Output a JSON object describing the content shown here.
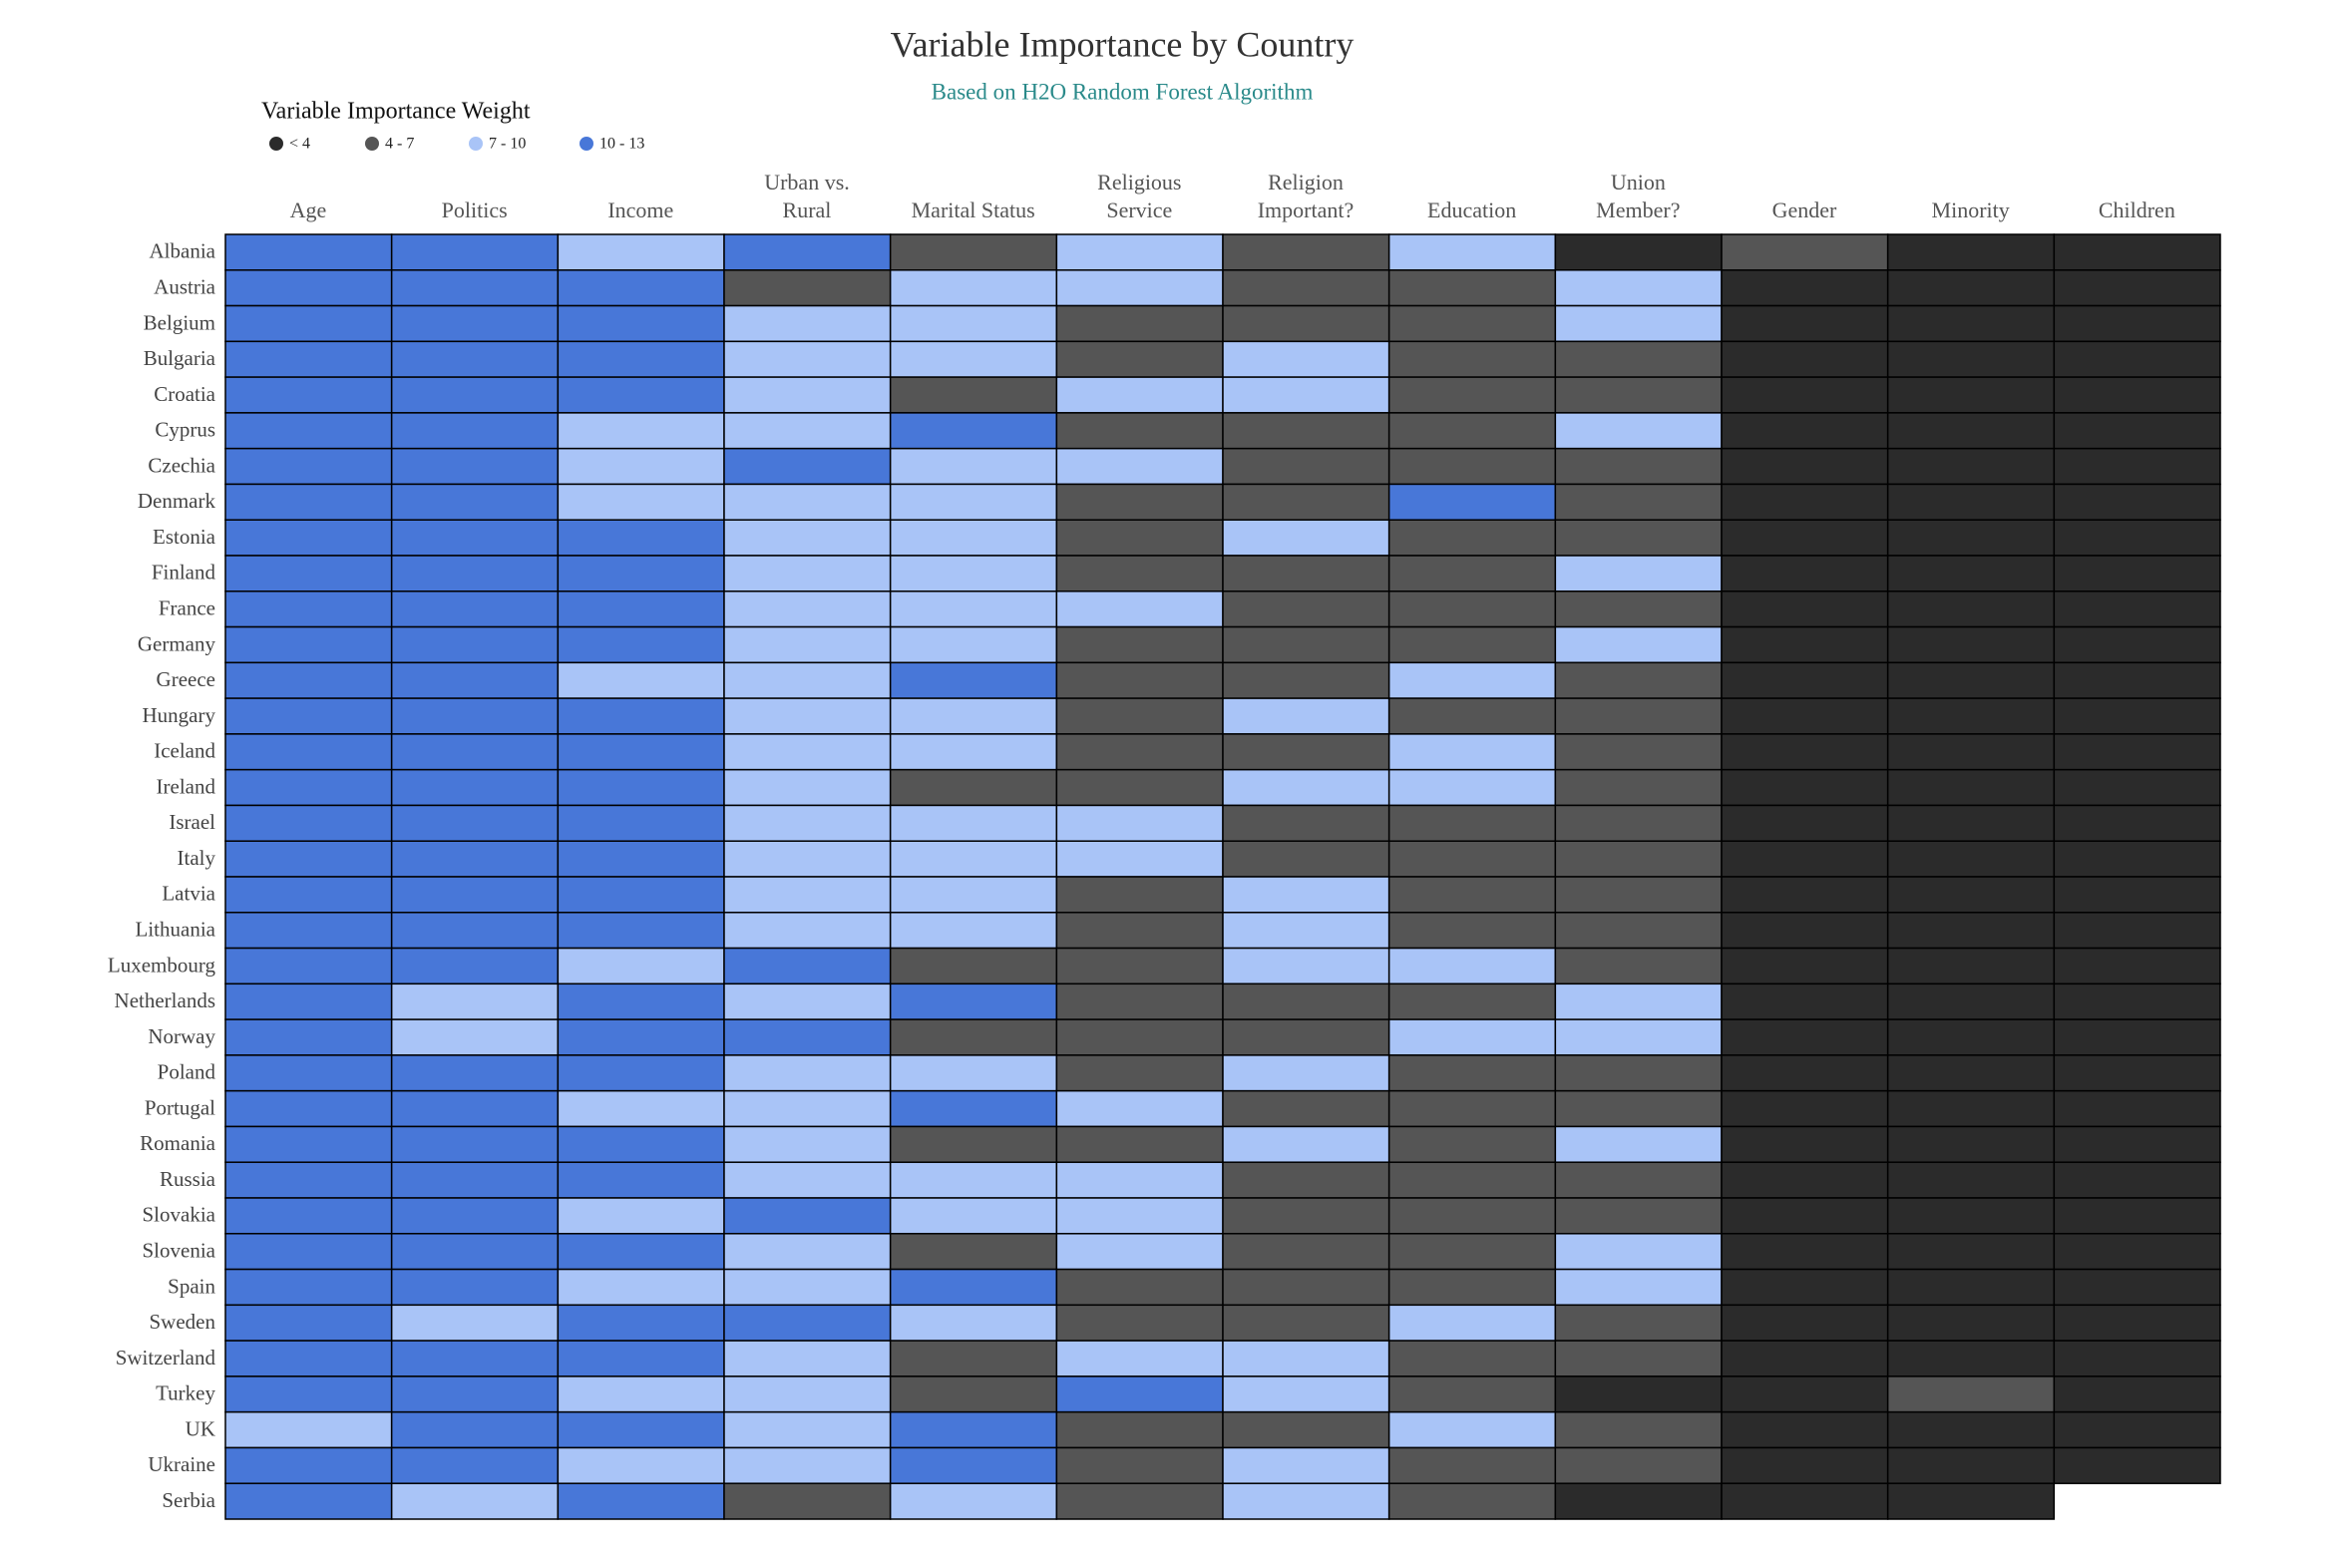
{
  "chart_data": {
    "type": "heatmap",
    "title": "Variable Importance by Country",
    "subtitle": "Based on H2O Random Forest Algorithm",
    "legend_title": "Variable Importance Weight",
    "legend": [
      {
        "label": "< 4",
        "color": "#2b2b2b"
      },
      {
        "label": "4 - 7",
        "color": "#555555"
      },
      {
        "label": "7 - 10",
        "color": "#a9c4f7"
      },
      {
        "label": "10 - 13",
        "color": "#4877d8"
      }
    ],
    "columns": [
      "Age",
      "Politics",
      "Income",
      "Urban vs.\nRural",
      "Marital Status",
      "Religious\nService",
      "Religion\nImportant?",
      "Education",
      "Union\nMember?",
      "Gender",
      "Minority",
      "Children"
    ],
    "rows": [
      {
        "name": "Albania",
        "cells": [
          "10 - 13",
          "10 - 13",
          "7 - 10",
          "10 - 13",
          "4 - 7",
          "7 - 10",
          "4 - 7",
          "7 - 10",
          "< 4",
          "4 - 7",
          "< 4",
          "< 4"
        ]
      },
      {
        "name": "Austria",
        "cells": [
          "10 - 13",
          "10 - 13",
          "10 - 13",
          "4 - 7",
          "7 - 10",
          "7 - 10",
          "4 - 7",
          "4 - 7",
          "7 - 10",
          "< 4",
          "< 4",
          "< 4"
        ]
      },
      {
        "name": "Belgium",
        "cells": [
          "10 - 13",
          "10 - 13",
          "10 - 13",
          "7 - 10",
          "7 - 10",
          "4 - 7",
          "4 - 7",
          "4 - 7",
          "7 - 10",
          "< 4",
          "< 4",
          "< 4"
        ]
      },
      {
        "name": "Bulgaria",
        "cells": [
          "10 - 13",
          "10 - 13",
          "10 - 13",
          "7 - 10",
          "7 - 10",
          "4 - 7",
          "7 - 10",
          "4 - 7",
          "4 - 7",
          "< 4",
          "< 4",
          "< 4"
        ]
      },
      {
        "name": "Croatia",
        "cells": [
          "10 - 13",
          "10 - 13",
          "10 - 13",
          "7 - 10",
          "4 - 7",
          "7 - 10",
          "7 - 10",
          "4 - 7",
          "4 - 7",
          "< 4",
          "< 4",
          "< 4"
        ]
      },
      {
        "name": "Cyprus",
        "cells": [
          "10 - 13",
          "10 - 13",
          "7 - 10",
          "7 - 10",
          "10 - 13",
          "4 - 7",
          "4 - 7",
          "4 - 7",
          "7 - 10",
          "< 4",
          "< 4",
          "< 4"
        ]
      },
      {
        "name": "Czechia",
        "cells": [
          "10 - 13",
          "10 - 13",
          "7 - 10",
          "10 - 13",
          "7 - 10",
          "7 - 10",
          "4 - 7",
          "4 - 7",
          "4 - 7",
          "< 4",
          "< 4",
          "< 4"
        ]
      },
      {
        "name": "Denmark",
        "cells": [
          "10 - 13",
          "10 - 13",
          "7 - 10",
          "7 - 10",
          "7 - 10",
          "4 - 7",
          "4 - 7",
          "10 - 13",
          "4 - 7",
          "< 4",
          "< 4",
          "< 4"
        ]
      },
      {
        "name": "Estonia",
        "cells": [
          "10 - 13",
          "10 - 13",
          "10 - 13",
          "7 - 10",
          "7 - 10",
          "4 - 7",
          "7 - 10",
          "4 - 7",
          "4 - 7",
          "< 4",
          "< 4",
          "< 4"
        ]
      },
      {
        "name": "Finland",
        "cells": [
          "10 - 13",
          "10 - 13",
          "10 - 13",
          "7 - 10",
          "7 - 10",
          "4 - 7",
          "4 - 7",
          "4 - 7",
          "7 - 10",
          "< 4",
          "< 4",
          "< 4"
        ]
      },
      {
        "name": "France",
        "cells": [
          "10 - 13",
          "10 - 13",
          "10 - 13",
          "7 - 10",
          "7 - 10",
          "7 - 10",
          "4 - 7",
          "4 - 7",
          "4 - 7",
          "< 4",
          "< 4",
          "< 4"
        ]
      },
      {
        "name": "Germany",
        "cells": [
          "10 - 13",
          "10 - 13",
          "10 - 13",
          "7 - 10",
          "7 - 10",
          "4 - 7",
          "4 - 7",
          "4 - 7",
          "7 - 10",
          "< 4",
          "< 4",
          "< 4"
        ]
      },
      {
        "name": "Greece",
        "cells": [
          "10 - 13",
          "10 - 13",
          "7 - 10",
          "7 - 10",
          "10 - 13",
          "4 - 7",
          "4 - 7",
          "7 - 10",
          "4 - 7",
          "< 4",
          "< 4",
          "< 4"
        ]
      },
      {
        "name": "Hungary",
        "cells": [
          "10 - 13",
          "10 - 13",
          "10 - 13",
          "7 - 10",
          "7 - 10",
          "4 - 7",
          "7 - 10",
          "4 - 7",
          "4 - 7",
          "< 4",
          "< 4",
          "< 4"
        ]
      },
      {
        "name": "Iceland",
        "cells": [
          "10 - 13",
          "10 - 13",
          "10 - 13",
          "7 - 10",
          "7 - 10",
          "4 - 7",
          "4 - 7",
          "7 - 10",
          "4 - 7",
          "< 4",
          "< 4",
          "< 4"
        ]
      },
      {
        "name": "Ireland",
        "cells": [
          "10 - 13",
          "10 - 13",
          "10 - 13",
          "7 - 10",
          "4 - 7",
          "4 - 7",
          "7 - 10",
          "7 - 10",
          "4 - 7",
          "< 4",
          "< 4",
          "< 4"
        ]
      },
      {
        "name": "Israel",
        "cells": [
          "10 - 13",
          "10 - 13",
          "10 - 13",
          "7 - 10",
          "7 - 10",
          "7 - 10",
          "4 - 7",
          "4 - 7",
          "4 - 7",
          "< 4",
          "< 4",
          "< 4"
        ]
      },
      {
        "name": "Italy",
        "cells": [
          "10 - 13",
          "10 - 13",
          "10 - 13",
          "7 - 10",
          "7 - 10",
          "7 - 10",
          "4 - 7",
          "4 - 7",
          "4 - 7",
          "< 4",
          "< 4",
          "< 4"
        ]
      },
      {
        "name": "Latvia",
        "cells": [
          "10 - 13",
          "10 - 13",
          "10 - 13",
          "7 - 10",
          "7 - 10",
          "4 - 7",
          "7 - 10",
          "4 - 7",
          "4 - 7",
          "< 4",
          "< 4",
          "< 4"
        ]
      },
      {
        "name": "Lithuania",
        "cells": [
          "10 - 13",
          "10 - 13",
          "10 - 13",
          "7 - 10",
          "7 - 10",
          "4 - 7",
          "7 - 10",
          "4 - 7",
          "4 - 7",
          "< 4",
          "< 4",
          "< 4"
        ]
      },
      {
        "name": "Luxembourg",
        "cells": [
          "10 - 13",
          "10 - 13",
          "7 - 10",
          "10 - 13",
          "4 - 7",
          "4 - 7",
          "7 - 10",
          "7 - 10",
          "4 - 7",
          "< 4",
          "< 4",
          "< 4"
        ]
      },
      {
        "name": "Netherlands",
        "cells": [
          "10 - 13",
          "7 - 10",
          "10 - 13",
          "7 - 10",
          "10 - 13",
          "4 - 7",
          "4 - 7",
          "4 - 7",
          "7 - 10",
          "< 4",
          "< 4",
          "< 4"
        ]
      },
      {
        "name": "Norway",
        "cells": [
          "10 - 13",
          "7 - 10",
          "10 - 13",
          "10 - 13",
          "4 - 7",
          "4 - 7",
          "4 - 7",
          "7 - 10",
          "7 - 10",
          "< 4",
          "< 4",
          "< 4"
        ]
      },
      {
        "name": "Poland",
        "cells": [
          "10 - 13",
          "10 - 13",
          "10 - 13",
          "7 - 10",
          "7 - 10",
          "4 - 7",
          "7 - 10",
          "4 - 7",
          "4 - 7",
          "< 4",
          "< 4",
          "< 4"
        ]
      },
      {
        "name": "Portugal",
        "cells": [
          "10 - 13",
          "10 - 13",
          "7 - 10",
          "7 - 10",
          "10 - 13",
          "7 - 10",
          "4 - 7",
          "4 - 7",
          "4 - 7",
          "< 4",
          "< 4",
          "< 4"
        ]
      },
      {
        "name": "Romania",
        "cells": [
          "10 - 13",
          "10 - 13",
          "10 - 13",
          "7 - 10",
          "4 - 7",
          "4 - 7",
          "7 - 10",
          "4 - 7",
          "7 - 10",
          "< 4",
          "< 4",
          "< 4"
        ]
      },
      {
        "name": "Russia",
        "cells": [
          "10 - 13",
          "10 - 13",
          "10 - 13",
          "7 - 10",
          "7 - 10",
          "7 - 10",
          "4 - 7",
          "4 - 7",
          "4 - 7",
          "< 4",
          "< 4",
          "< 4"
        ]
      },
      {
        "name": "Slovakia",
        "cells": [
          "10 - 13",
          "10 - 13",
          "7 - 10",
          "10 - 13",
          "7 - 10",
          "7 - 10",
          "4 - 7",
          "4 - 7",
          "4 - 7",
          "< 4",
          "< 4",
          "< 4"
        ]
      },
      {
        "name": "Slovenia",
        "cells": [
          "10 - 13",
          "10 - 13",
          "10 - 13",
          "7 - 10",
          "4 - 7",
          "7 - 10",
          "4 - 7",
          "4 - 7",
          "7 - 10",
          "< 4",
          "< 4",
          "< 4"
        ]
      },
      {
        "name": "Spain",
        "cells": [
          "10 - 13",
          "10 - 13",
          "7 - 10",
          "7 - 10",
          "10 - 13",
          "4 - 7",
          "4 - 7",
          "4 - 7",
          "7 - 10",
          "< 4",
          "< 4",
          "< 4"
        ]
      },
      {
        "name": "Sweden",
        "cells": [
          "10 - 13",
          "7 - 10",
          "10 - 13",
          "10 - 13",
          "7 - 10",
          "4 - 7",
          "4 - 7",
          "7 - 10",
          "4 - 7",
          "< 4",
          "< 4",
          "< 4"
        ]
      },
      {
        "name": "Switzerland",
        "cells": [
          "10 - 13",
          "10 - 13",
          "10 - 13",
          "7 - 10",
          "4 - 7",
          "7 - 10",
          "7 - 10",
          "4 - 7",
          "4 - 7",
          "< 4",
          "< 4",
          "< 4"
        ]
      },
      {
        "name": "Turkey",
        "cells": [
          "10 - 13",
          "10 - 13",
          "7 - 10",
          "7 - 10",
          "4 - 7",
          "10 - 13",
          "7 - 10",
          "4 - 7",
          "< 4",
          "< 4",
          "4 - 7",
          "< 4"
        ]
      },
      {
        "name": "UK",
        "cells": [
          "7 - 10",
          "10 - 13",
          "10 - 13",
          "7 - 10",
          "10 - 13",
          "4 - 7",
          "4 - 7",
          "7 - 10",
          "4 - 7",
          "< 4",
          "< 4",
          "< 4"
        ]
      },
      {
        "name": "Ukraine",
        "cells": [
          "10 - 13",
          "10 - 13",
          "7 - 10",
          "7 - 10",
          "10 - 13",
          "4 - 7",
          "7 - 10",
          "4 - 7",
          "4 - 7",
          "< 4",
          "< 4",
          "< 4"
        ]
      },
      {
        "name": "Serbia",
        "cells": [
          "10 - 13",
          "7 - 10",
          "10 - 13",
          "4 - 7",
          "7 - 10",
          "4 - 7",
          "7 - 10",
          "4 - 7",
          "< 4",
          "< 4",
          "< 4",
          null
        ]
      }
    ]
  }
}
